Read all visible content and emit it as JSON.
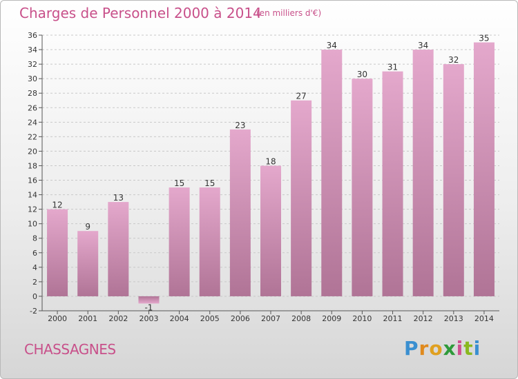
{
  "header": {
    "title": "Charges de Personnel 2000 à 2014",
    "subtitle": "(en milliers d'€)"
  },
  "footer": {
    "commune": "CHASSAGNES",
    "logo_text": "Proxiti"
  },
  "colors": {
    "title": "#c8508a",
    "bar_top": "#e4a8cc",
    "bar_bottom": "#b87a9e",
    "grid": "#c8c8c8"
  },
  "chart_data": {
    "type": "bar",
    "title": "Charges de Personnel 2000 à 2014",
    "subtitle": "(en milliers d'€)",
    "xlabel": "",
    "ylabel": "",
    "categories": [
      "2000",
      "2001",
      "2002",
      "2003",
      "2004",
      "2005",
      "2006",
      "2007",
      "2008",
      "2009",
      "2010",
      "2011",
      "2012",
      "2013",
      "2014"
    ],
    "values": [
      12,
      9,
      13,
      -1,
      15,
      15,
      23,
      18,
      27,
      34,
      30,
      31,
      34,
      32,
      35
    ],
    "ylim": [
      -2,
      36
    ],
    "yticks": [
      -2,
      0,
      2,
      4,
      6,
      8,
      10,
      12,
      14,
      16,
      18,
      20,
      22,
      24,
      26,
      28,
      30,
      32,
      34,
      36
    ],
    "grid": "horizontal dashed",
    "legend": "none"
  }
}
